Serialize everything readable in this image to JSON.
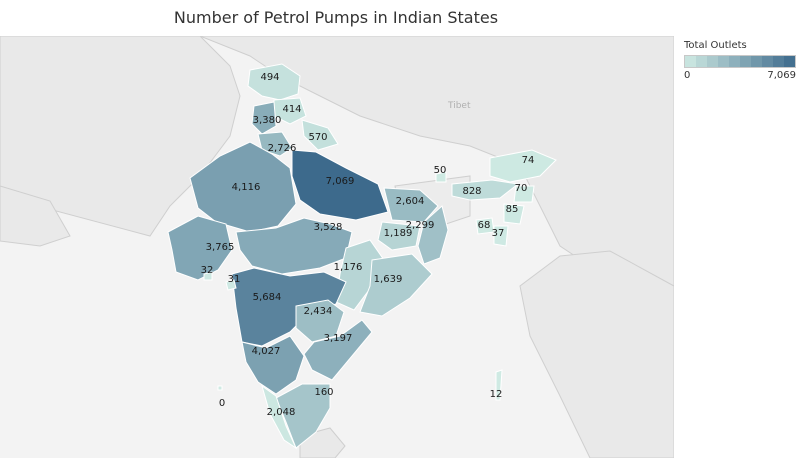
{
  "chart_data": {
    "type": "map",
    "title": "Number of Petrol Pumps in Indian States",
    "legend": {
      "title": "Total Outlets",
      "min_label": "0",
      "max_label": "7,069",
      "min": 0,
      "max": 7069,
      "steps": 10,
      "color_low": "#cfeae3",
      "color_high": "#3d6a8c",
      "placement": "top-right"
    },
    "background_label": "Tibet",
    "regions": [
      {
        "label": "494",
        "value": 494
      },
      {
        "label": "414",
        "value": 414
      },
      {
        "label": "3,380",
        "value": 3380
      },
      {
        "label": "570",
        "value": 570
      },
      {
        "label": "2,726",
        "value": 2726
      },
      {
        "label": "4,116",
        "value": 4116
      },
      {
        "label": "7,069",
        "value": 7069
      },
      {
        "label": "2,604",
        "value": 2604
      },
      {
        "label": "3,765",
        "value": 3765
      },
      {
        "label": "3,528",
        "value": 3528
      },
      {
        "label": "1,189",
        "value": 1189
      },
      {
        "label": "2,299",
        "value": 2299
      },
      {
        "label": "1,176",
        "value": 1176
      },
      {
        "label": "1,639",
        "value": 1639
      },
      {
        "label": "5,684",
        "value": 5684
      },
      {
        "label": "2,434",
        "value": 2434
      },
      {
        "label": "3,197",
        "value": 3197
      },
      {
        "label": "4,027",
        "value": 4027
      },
      {
        "label": "2,048",
        "value": 2048
      },
      {
        "label": "160",
        "value": 160
      },
      {
        "label": "32",
        "value": 32
      },
      {
        "label": "31",
        "value": 31
      },
      {
        "label": "50",
        "value": 50
      },
      {
        "label": "828",
        "value": 828
      },
      {
        "label": "74",
        "value": 74
      },
      {
        "label": "70",
        "value": 70
      },
      {
        "label": "85",
        "value": 85
      },
      {
        "label": "68",
        "value": 68
      },
      {
        "label": "37",
        "value": 37
      },
      {
        "label": "0",
        "value": 0
      },
      {
        "label": "12",
        "value": 12
      }
    ]
  }
}
